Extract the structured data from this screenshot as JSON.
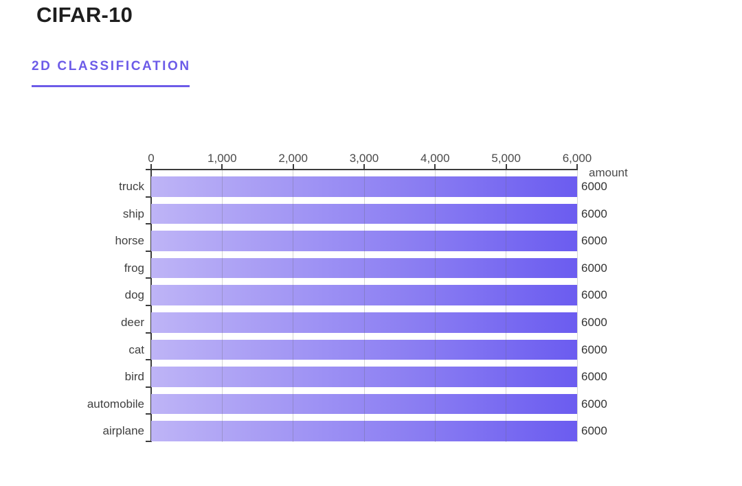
{
  "header": {
    "title": "CIFAR-10",
    "tab_label": "2D CLASSIFICATION"
  },
  "colors": {
    "accent": "#6C5BE8",
    "title_color": "#1E1E1E",
    "bar_gradient_start": "#BEB4F6",
    "bar_gradient_end": "#6B5CF0",
    "axis_line": "#3B3B3B",
    "gridline": "rgba(100,100,100,0.28)",
    "tick_label": "#4A4A4A",
    "category_label": "#3F3F3F",
    "value_label": "#333333"
  },
  "chart_data": {
    "type": "bar",
    "orientation": "horizontal",
    "title": "CIFAR-10",
    "value_axis_label": "amount",
    "categories_top_to_bottom": [
      "truck",
      "ship",
      "horse",
      "frog",
      "dog",
      "deer",
      "cat",
      "bird",
      "automobile",
      "airplane"
    ],
    "values": [
      6000,
      6000,
      6000,
      6000,
      6000,
      6000,
      6000,
      6000,
      6000,
      6000
    ],
    "value_labels": [
      "6000",
      "6000",
      "6000",
      "6000",
      "6000",
      "6000",
      "6000",
      "6000",
      "6000",
      "6000"
    ],
    "x_ticks": [
      "0",
      "1,000",
      "2,000",
      "3,000",
      "4,000",
      "5,000",
      "6,000"
    ],
    "xlim": [
      0,
      6000
    ],
    "grid": "vertical",
    "legend": "none"
  }
}
